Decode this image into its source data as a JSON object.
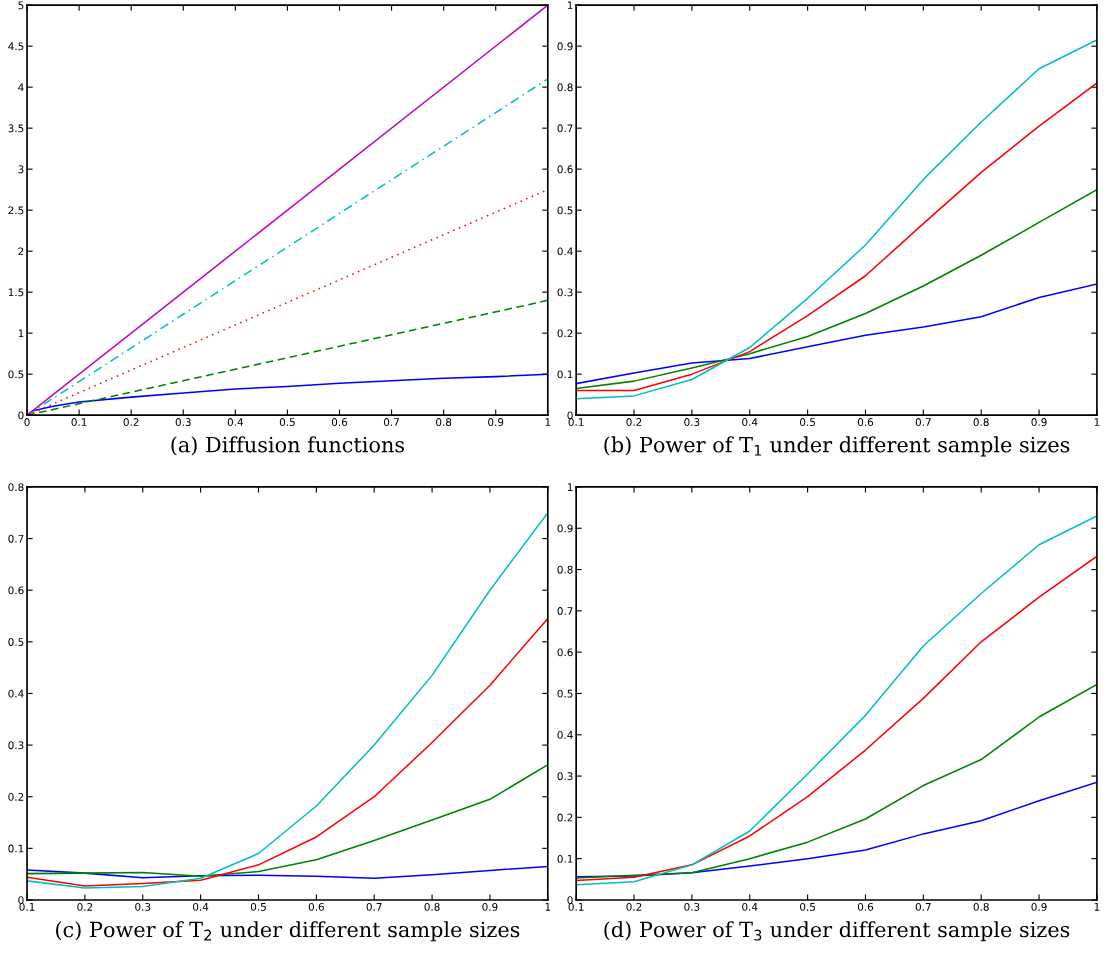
{
  "chart_data": [
    {
      "type": "line",
      "xlabel": "(a) Diffusion functions",
      "xlim": [
        0,
        1
      ],
      "ylim": [
        0,
        5
      ],
      "xticks": [
        0,
        0.1,
        0.2,
        0.3,
        0.4,
        0.5,
        0.6,
        0.7,
        0.8,
        0.9,
        1
      ],
      "yticks": [
        0,
        0.5,
        1,
        1.5,
        2,
        2.5,
        3,
        3.5,
        4,
        4.5,
        5
      ],
      "series": [
        {
          "color": "#0000ff",
          "line_style": "solid",
          "x": [
            0,
            0.01,
            0.05,
            0.1,
            0.2,
            0.3,
            0.4,
            0.5,
            0.6,
            0.7,
            0.8,
            0.9,
            1
          ],
          "values": [
            0,
            0.05,
            0.11,
            0.16,
            0.22,
            0.27,
            0.32,
            0.35,
            0.39,
            0.42,
            0.45,
            0.47,
            0.5
          ]
        },
        {
          "color": "#008000",
          "line_style": "dashed",
          "x": [
            0,
            1
          ],
          "values": [
            0,
            1.4
          ]
        },
        {
          "color": "#ff0000",
          "line_style": "dotted",
          "x": [
            0,
            1
          ],
          "values": [
            0,
            2.75
          ]
        },
        {
          "color": "#00bfbf",
          "line_style": "dashdot",
          "x": [
            0,
            1
          ],
          "values": [
            0,
            4.1
          ]
        },
        {
          "color": "#bf00bf",
          "line_style": "solid",
          "x": [
            0,
            1
          ],
          "values": [
            0,
            5
          ]
        }
      ]
    },
    {
      "type": "line",
      "xlabel": "(b) Power of T$_{1}$ under different sample sizes",
      "x": [
        0.1,
        0.2,
        0.3,
        0.4,
        0.5,
        0.6,
        0.7,
        0.8,
        0.9,
        1
      ],
      "xlim": [
        0.1,
        1
      ],
      "ylim": [
        0,
        1
      ],
      "xticks": [
        0.1,
        0.2,
        0.3,
        0.4,
        0.5,
        0.6,
        0.7,
        0.8,
        0.9,
        1
      ],
      "yticks": [
        0,
        0.1,
        0.2,
        0.3,
        0.4,
        0.5,
        0.6,
        0.7,
        0.8,
        0.9,
        1
      ],
      "series": [
        {
          "color": "#0000ff",
          "values": [
            0.077,
            0.103,
            0.127,
            0.138,
            0.167,
            0.195,
            0.215,
            0.24,
            0.287,
            0.32
          ]
        },
        {
          "color": "#008000",
          "values": [
            0.065,
            0.083,
            0.115,
            0.15,
            0.192,
            0.248,
            0.315,
            0.39,
            0.47,
            0.55
          ]
        },
        {
          "color": "#ff0000",
          "values": [
            0.06,
            0.06,
            0.1,
            0.155,
            0.243,
            0.34,
            0.467,
            0.592,
            0.705,
            0.81
          ]
        },
        {
          "color": "#00bfbf",
          "values": [
            0.04,
            0.047,
            0.087,
            0.165,
            0.285,
            0.415,
            0.575,
            0.715,
            0.845,
            0.915
          ]
        }
      ]
    },
    {
      "type": "line",
      "xlabel": "(c) Power of T$_{2}$ under different sample sizes",
      "x": [
        0.1,
        0.2,
        0.3,
        0.4,
        0.5,
        0.6,
        0.7,
        0.8,
        0.9,
        1
      ],
      "xlim": [
        0.1,
        1
      ],
      "ylim": [
        0,
        0.8
      ],
      "xticks": [
        0.1,
        0.2,
        0.3,
        0.4,
        0.5,
        0.6,
        0.7,
        0.8,
        0.9,
        1
      ],
      "yticks": [
        0,
        0.1,
        0.2,
        0.3,
        0.4,
        0.5,
        0.6,
        0.7,
        0.8
      ],
      "series": [
        {
          "color": "#0000ff",
          "values": [
            0.058,
            0.052,
            0.043,
            0.047,
            0.048,
            0.046,
            0.042,
            0.049,
            0.057,
            0.065
          ]
        },
        {
          "color": "#008000",
          "values": [
            0.051,
            0.052,
            0.053,
            0.046,
            0.055,
            0.078,
            0.115,
            0.155,
            0.195,
            0.262
          ]
        },
        {
          "color": "#ff0000",
          "values": [
            0.044,
            0.027,
            0.032,
            0.038,
            0.068,
            0.122,
            0.2,
            0.305,
            0.416,
            0.545
          ]
        },
        {
          "color": "#00bfbf",
          "values": [
            0.037,
            0.023,
            0.026,
            0.042,
            0.09,
            0.182,
            0.3,
            0.435,
            0.6,
            0.75
          ]
        }
      ]
    },
    {
      "type": "line",
      "xlabel": "(d) Power of T$_{3}$ under different sample sizes",
      "x": [
        0.1,
        0.2,
        0.3,
        0.4,
        0.5,
        0.6,
        0.7,
        0.8,
        0.9,
        1
      ],
      "xlim": [
        0.1,
        1
      ],
      "ylim": [
        0,
        1
      ],
      "xticks": [
        0.1,
        0.2,
        0.3,
        0.4,
        0.5,
        0.6,
        0.7,
        0.8,
        0.9,
        1
      ],
      "yticks": [
        0,
        0.1,
        0.2,
        0.3,
        0.4,
        0.5,
        0.6,
        0.7,
        0.8,
        0.9,
        1
      ],
      "series": [
        {
          "color": "#0000ff",
          "values": [
            0.056,
            0.058,
            0.066,
            0.082,
            0.1,
            0.121,
            0.16,
            0.192,
            0.24,
            0.285
          ]
        },
        {
          "color": "#008000",
          "values": [
            0.053,
            0.06,
            0.066,
            0.1,
            0.14,
            0.196,
            0.277,
            0.34,
            0.443,
            0.522
          ]
        },
        {
          "color": "#ff0000",
          "values": [
            0.047,
            0.055,
            0.085,
            0.155,
            0.25,
            0.363,
            0.488,
            0.625,
            0.733,
            0.832
          ]
        },
        {
          "color": "#00bfbf",
          "values": [
            0.037,
            0.044,
            0.085,
            0.167,
            0.305,
            0.447,
            0.615,
            0.742,
            0.86,
            0.93
          ]
        }
      ]
    }
  ]
}
